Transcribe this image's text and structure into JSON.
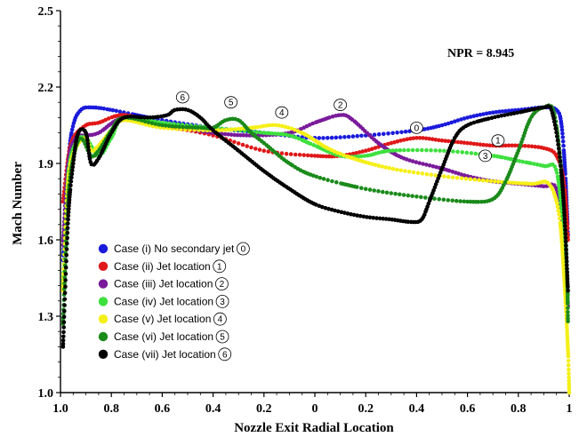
{
  "chart_data": {
    "type": "scatter",
    "title": "",
    "annotation": "NPR = 8.945",
    "xlabel": "Nozzle Exit Radial Location",
    "ylabel": "Mach Number",
    "xlim": [
      -1,
      1
    ],
    "ylim": [
      1.0,
      2.5
    ],
    "x_tick_labels": [
      "1.0",
      "0.8",
      "0.6",
      "0.4",
      "0.2",
      "0",
      "0.2",
      "0.4",
      "0.6",
      "0.8",
      "1"
    ],
    "y_ticks": [
      1.0,
      1.3,
      1.6,
      1.9,
      2.2,
      2.5
    ],
    "y_tick_labels": [
      "1.0",
      "1.3",
      "1.6",
      "1.9",
      "2.2",
      "2.5"
    ],
    "legend_position": "bottom-left",
    "series": [
      {
        "name": "Case (i) No secondary jet",
        "legend_marker": "0",
        "color": "#1a1adc",
        "points": [
          [
            -0.99,
            1.52
          ],
          [
            -0.97,
            1.9
          ],
          [
            -0.95,
            2.05
          ],
          [
            -0.92,
            2.11
          ],
          [
            -0.88,
            2.12
          ],
          [
            -0.8,
            2.11
          ],
          [
            -0.6,
            2.07
          ],
          [
            -0.4,
            2.04
          ],
          [
            -0.2,
            2.02
          ],
          [
            0.0,
            2.0
          ],
          [
            0.2,
            2.01
          ],
          [
            0.4,
            2.03
          ],
          [
            0.5,
            2.05
          ],
          [
            0.6,
            2.08
          ],
          [
            0.7,
            2.1
          ],
          [
            0.8,
            2.11
          ],
          [
            0.9,
            2.12
          ],
          [
            0.95,
            2.11
          ],
          [
            0.97,
            2.05
          ],
          [
            0.985,
            1.85
          ],
          [
            0.995,
            1.62
          ]
        ]
      },
      {
        "name": "Case (ii)  Jet location",
        "legend_marker": "1",
        "color": "#e01818",
        "points": [
          [
            -0.99,
            1.75
          ],
          [
            -0.97,
            1.92
          ],
          [
            -0.95,
            2.0
          ],
          [
            -0.9,
            2.05
          ],
          [
            -0.85,
            2.06
          ],
          [
            -0.75,
            2.09
          ],
          [
            -0.6,
            2.05
          ],
          [
            -0.4,
            2.01
          ],
          [
            -0.2,
            1.95
          ],
          [
            0.0,
            1.93
          ],
          [
            0.1,
            1.93
          ],
          [
            0.2,
            1.95
          ],
          [
            0.3,
            1.98
          ],
          [
            0.4,
            2.0
          ],
          [
            0.5,
            1.99
          ],
          [
            0.6,
            1.98
          ],
          [
            0.7,
            1.97
          ],
          [
            0.8,
            1.97
          ],
          [
            0.9,
            1.96
          ],
          [
            0.95,
            1.93
          ],
          [
            0.98,
            1.82
          ],
          [
            0.995,
            1.6
          ]
        ]
      },
      {
        "name": "Case (iii) Jet location",
        "legend_marker": "2",
        "color": "#7a1a9a",
        "points": [
          [
            -0.99,
            1.58
          ],
          [
            -0.97,
            1.9
          ],
          [
            -0.94,
            2.0
          ],
          [
            -0.9,
            2.01
          ],
          [
            -0.85,
            2.02
          ],
          [
            -0.75,
            2.08
          ],
          [
            -0.6,
            2.05
          ],
          [
            -0.4,
            2.02
          ],
          [
            -0.25,
            2.01
          ],
          [
            -0.1,
            2.02
          ],
          [
            0.0,
            2.06
          ],
          [
            0.1,
            2.09
          ],
          [
            0.15,
            2.07
          ],
          [
            0.25,
            1.98
          ],
          [
            0.35,
            1.92
          ],
          [
            0.5,
            1.88
          ],
          [
            0.6,
            1.85
          ],
          [
            0.7,
            1.83
          ],
          [
            0.8,
            1.82
          ],
          [
            0.9,
            1.81
          ],
          [
            0.95,
            1.8
          ],
          [
            0.98,
            1.6
          ],
          [
            0.995,
            1.34
          ]
        ]
      },
      {
        "name": "Case (iv) Jet location",
        "legend_marker": "3",
        "color": "#3ee03e",
        "points": [
          [
            -0.99,
            1.42
          ],
          [
            -0.97,
            1.85
          ],
          [
            -0.94,
            1.98
          ],
          [
            -0.9,
            2.0
          ],
          [
            -0.85,
            1.93
          ],
          [
            -0.8,
            2.0
          ],
          [
            -0.75,
            2.08
          ],
          [
            -0.6,
            2.06
          ],
          [
            -0.4,
            2.04
          ],
          [
            -0.2,
            2.02
          ],
          [
            -0.1,
            2.01
          ],
          [
            0.0,
            1.97
          ],
          [
            0.1,
            1.93
          ],
          [
            0.2,
            1.93
          ],
          [
            0.3,
            1.95
          ],
          [
            0.5,
            1.95
          ],
          [
            0.7,
            1.93
          ],
          [
            0.8,
            1.91
          ],
          [
            0.9,
            1.89
          ],
          [
            0.95,
            1.87
          ],
          [
            0.98,
            1.6
          ],
          [
            0.995,
            1.38
          ]
        ]
      },
      {
        "name": "Case (v) Jet location",
        "legend_marker": "4",
        "color": "#f5ef18",
        "points": [
          [
            -0.99,
            1.4
          ],
          [
            -0.97,
            1.83
          ],
          [
            -0.94,
            1.96
          ],
          [
            -0.9,
            2.0
          ],
          [
            -0.88,
            1.95
          ],
          [
            -0.85,
            1.97
          ],
          [
            -0.8,
            2.03
          ],
          [
            -0.75,
            2.07
          ],
          [
            -0.6,
            2.04
          ],
          [
            -0.4,
            2.03
          ],
          [
            -0.25,
            2.04
          ],
          [
            -0.15,
            2.05
          ],
          [
            -0.05,
            2.02
          ],
          [
            0.05,
            1.96
          ],
          [
            0.15,
            1.92
          ],
          [
            0.3,
            1.88
          ],
          [
            0.5,
            1.85
          ],
          [
            0.7,
            1.83
          ],
          [
            0.85,
            1.82
          ],
          [
            0.92,
            1.82
          ],
          [
            0.96,
            1.7
          ],
          [
            0.98,
            1.45
          ],
          [
            0.995,
            1.17
          ],
          [
            1.0,
            1.0
          ]
        ]
      },
      {
        "name": "Case (vi) Jet location",
        "legend_marker": "5",
        "color": "#1a8a1a",
        "points": [
          [
            -0.99,
            1.27
          ],
          [
            -0.97,
            1.75
          ],
          [
            -0.95,
            1.92
          ],
          [
            -0.92,
            2.0
          ],
          [
            -0.88,
            1.93
          ],
          [
            -0.85,
            1.95
          ],
          [
            -0.8,
            2.03
          ],
          [
            -0.75,
            2.08
          ],
          [
            -0.6,
            2.05
          ],
          [
            -0.45,
            2.04
          ],
          [
            -0.4,
            2.04
          ],
          [
            -0.35,
            2.07
          ],
          [
            -0.3,
            2.07
          ],
          [
            -0.25,
            2.02
          ],
          [
            -0.2,
            1.98
          ],
          [
            -0.1,
            1.9
          ],
          [
            0.0,
            1.85
          ],
          [
            0.2,
            1.8
          ],
          [
            0.4,
            1.77
          ],
          [
            0.6,
            1.75
          ],
          [
            0.7,
            1.76
          ],
          [
            0.75,
            1.83
          ],
          [
            0.8,
            1.95
          ],
          [
            0.85,
            2.08
          ],
          [
            0.9,
            2.12
          ],
          [
            0.94,
            2.1
          ],
          [
            0.97,
            1.85
          ],
          [
            0.99,
            1.5
          ],
          [
            0.995,
            1.28
          ]
        ]
      },
      {
        "name": "Case (vii) Jet location",
        "legend_marker": "6",
        "color": "#000000",
        "points": [
          [
            -0.99,
            1.18
          ],
          [
            -0.97,
            1.68
          ],
          [
            -0.95,
            1.9
          ],
          [
            -0.93,
            2.02
          ],
          [
            -0.9,
            2.02
          ],
          [
            -0.88,
            1.9
          ],
          [
            -0.85,
            1.92
          ],
          [
            -0.8,
            2.02
          ],
          [
            -0.75,
            2.08
          ],
          [
            -0.65,
            2.08
          ],
          [
            -0.58,
            2.09
          ],
          [
            -0.55,
            2.11
          ],
          [
            -0.5,
            2.11
          ],
          [
            -0.45,
            2.08
          ],
          [
            -0.4,
            2.03
          ],
          [
            -0.3,
            1.95
          ],
          [
            -0.2,
            1.87
          ],
          [
            -0.1,
            1.8
          ],
          [
            0.0,
            1.74
          ],
          [
            0.1,
            1.71
          ],
          [
            0.2,
            1.69
          ],
          [
            0.3,
            1.68
          ],
          [
            0.38,
            1.67
          ],
          [
            0.42,
            1.68
          ],
          [
            0.45,
            1.75
          ],
          [
            0.5,
            1.88
          ],
          [
            0.55,
            2.0
          ],
          [
            0.6,
            2.05
          ],
          [
            0.7,
            2.08
          ],
          [
            0.8,
            2.1
          ],
          [
            0.9,
            2.12
          ],
          [
            0.93,
            2.11
          ],
          [
            0.96,
            1.95
          ],
          [
            0.98,
            1.72
          ],
          [
            0.995,
            1.4
          ]
        ]
      }
    ],
    "curve_labels": [
      {
        "text": "0",
        "x": 0.4,
        "y": 2.04
      },
      {
        "text": "1",
        "x": 0.72,
        "y": 1.99
      },
      {
        "text": "2",
        "x": 0.1,
        "y": 2.13
      },
      {
        "text": "3",
        "x": 0.67,
        "y": 1.93
      },
      {
        "text": "4",
        "x": -0.13,
        "y": 2.1
      },
      {
        "text": "5",
        "x": -0.33,
        "y": 2.14
      },
      {
        "text": "6",
        "x": -0.52,
        "y": 2.16
      }
    ]
  }
}
